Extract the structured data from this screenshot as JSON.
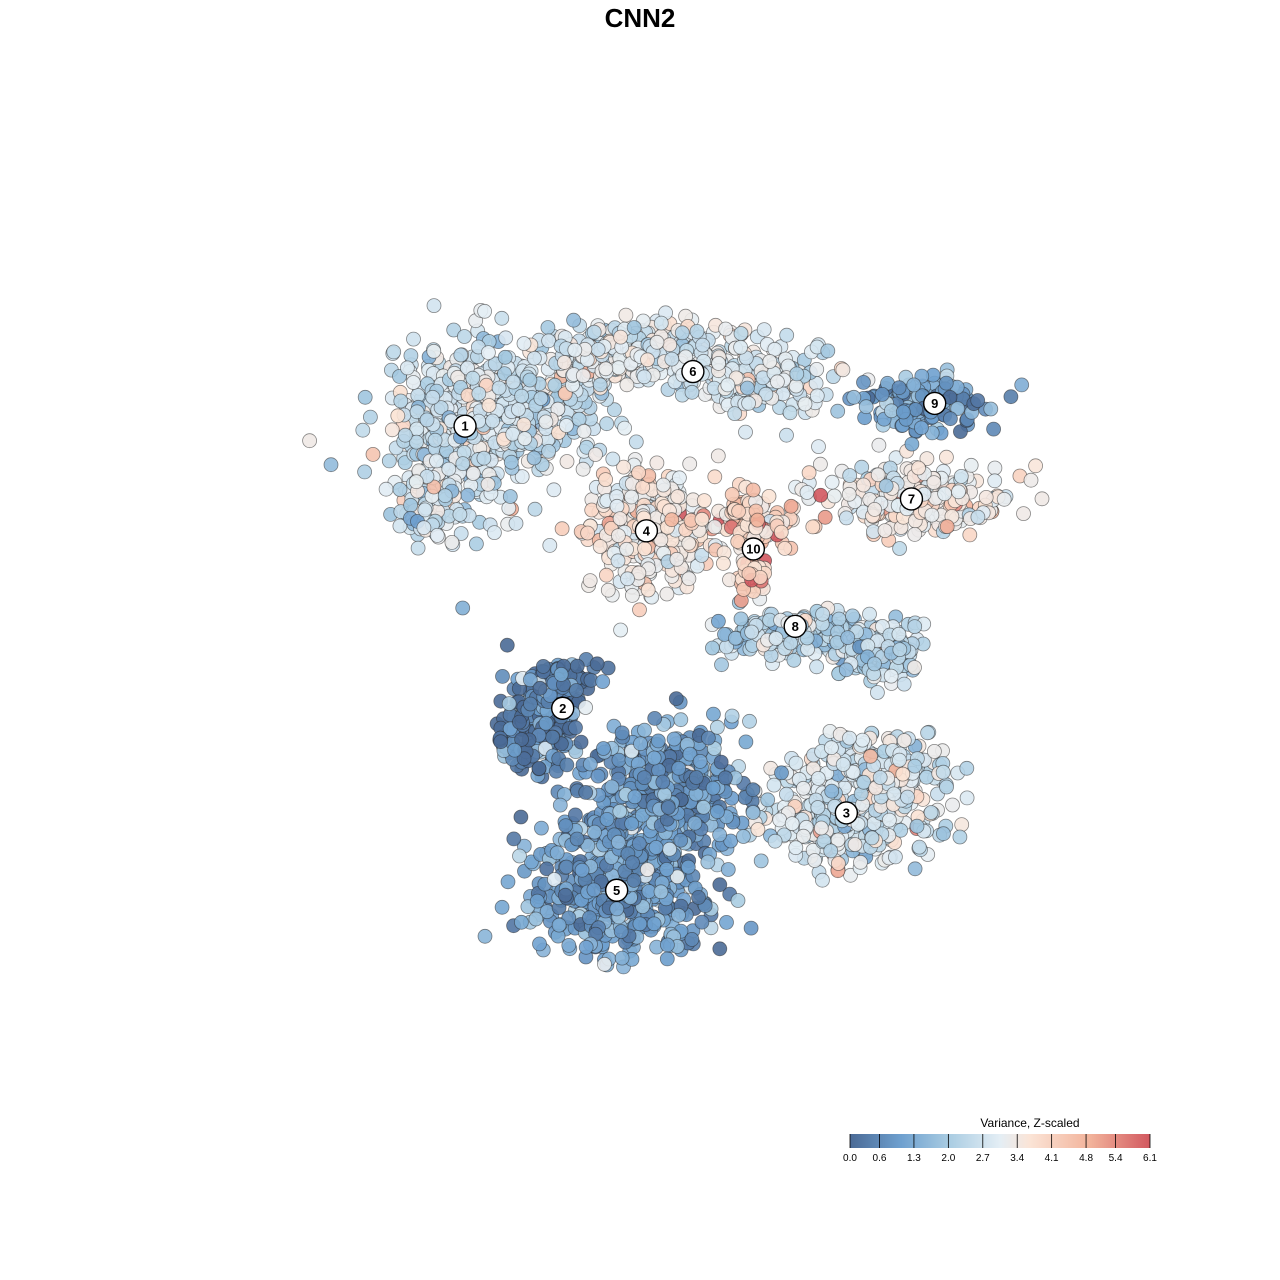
{
  "chart_data": {
    "type": "scatter",
    "title": "CNN2",
    "grid": false,
    "legend": {
      "title": "Variance, Z-scaled",
      "placement": "bottom-right",
      "ticks": [
        "0.0",
        "0.6",
        "1.3",
        "2.0",
        "2.7",
        "3.4",
        "4.1",
        "4.8",
        "5.4",
        "6.1"
      ],
      "range": [
        0.0,
        6.1
      ],
      "colors": [
        "#4a6a96",
        "#6ea0cf",
        "#a9cce2",
        "#e4eef5",
        "#fbe4d6",
        "#f2b39b",
        "#d2585f"
      ]
    },
    "clusters": [
      {
        "label": "1",
        "x": 0.285,
        "y": 0.735,
        "value": 2.7
      },
      {
        "label": "2",
        "x": 0.39,
        "y": 0.425,
        "value": 0.3
      },
      {
        "label": "3",
        "x": 0.695,
        "y": 0.31,
        "value": 2.8
      },
      {
        "label": "4",
        "x": 0.48,
        "y": 0.62,
        "value": 3.6
      },
      {
        "label": "5",
        "x": 0.448,
        "y": 0.225,
        "value": 1.0
      },
      {
        "label": "6",
        "x": 0.53,
        "y": 0.795,
        "value": 3.0
      },
      {
        "label": "7",
        "x": 0.765,
        "y": 0.655,
        "value": 3.4
      },
      {
        "label": "8",
        "x": 0.64,
        "y": 0.515,
        "value": 2.4
      },
      {
        "label": "9",
        "x": 0.79,
        "y": 0.76,
        "value": 1.1
      },
      {
        "label": "10",
        "x": 0.595,
        "y": 0.6,
        "value": 4.3
      }
    ]
  }
}
